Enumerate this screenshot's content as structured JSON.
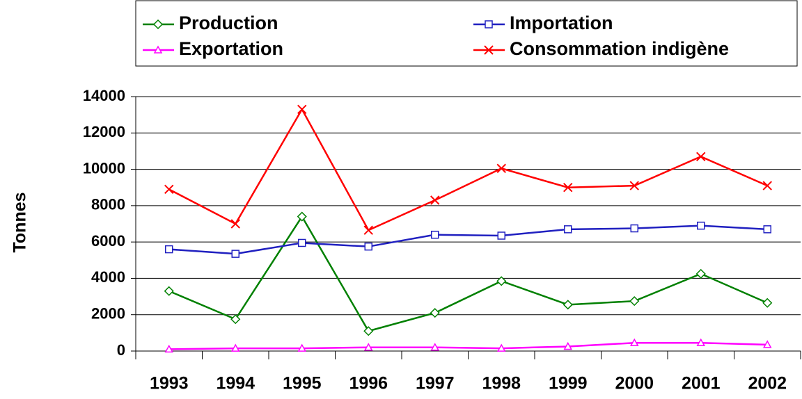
{
  "chart_data": {
    "type": "line",
    "y_label": "Tonnes",
    "categories": [
      "1993",
      "1994",
      "1995",
      "1996",
      "1997",
      "1998",
      "1999",
      "2000",
      "2001",
      "2002"
    ],
    "series": [
      {
        "name": "Production",
        "color": "#008000",
        "marker": "diamond",
        "values": [
          3300,
          1750,
          7400,
          1100,
          2100,
          3850,
          2550,
          2750,
          4250,
          2650
        ]
      },
      {
        "name": "Importation",
        "color": "#2020c0",
        "marker": "square",
        "values": [
          5600,
          5350,
          5950,
          5750,
          6400,
          6350,
          6700,
          6750,
          6900,
          6700
        ]
      },
      {
        "name": "Exportation",
        "color": "#ff00ff",
        "marker": "triangle",
        "values": [
          100,
          150,
          150,
          200,
          200,
          150,
          250,
          450,
          450,
          350
        ]
      },
      {
        "name": "Consommation indigène",
        "color": "#ff0000",
        "marker": "x",
        "values": [
          8900,
          7000,
          13300,
          6650,
          8300,
          10050,
          9000,
          9100,
          10700,
          9100
        ]
      }
    ],
    "ylim": [
      0,
      14000
    ],
    "yticks": [
      0,
      2000,
      4000,
      6000,
      8000,
      10000,
      12000,
      14000
    ],
    "grid": true,
    "legend": "top"
  }
}
